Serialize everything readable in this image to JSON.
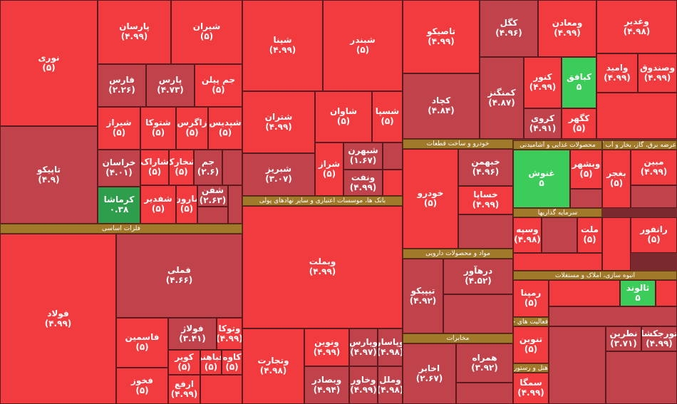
{
  "tiles": [
    {
      "name": "نوری",
      "label": "(۵)",
      "color": "#f23b3e"
    },
    {
      "name": "پارسان",
      "label": "(۴.۹۹)",
      "color": "#f23b3e"
    },
    {
      "name": "شیران",
      "label": "(۵)",
      "color": "#f23b3e"
    },
    {
      "name": "تاپیکو",
      "label": "(۴.۹)",
      "color": "#c0424a"
    },
    {
      "name": "فارس",
      "label": "(۲.۲۶)",
      "color": "#c0424a"
    },
    {
      "name": "پارس",
      "label": "(۴.۷۳)",
      "color": "#c0424a"
    },
    {
      "name": "جم پیلن",
      "label": "(۵)",
      "color": "#f23b3e"
    },
    {
      "name": "شیراز",
      "label": "(۵)",
      "color": "#f23b3e"
    },
    {
      "name": "شتوکا",
      "label": "(۵)",
      "color": "#f23b3e"
    },
    {
      "name": "زاگرس",
      "label": "(۵)",
      "color": "#f23b3e"
    },
    {
      "name": "شپدیس",
      "label": "(۵)",
      "color": "#f23b3e"
    },
    {
      "name": "خراسان",
      "label": "(۴.۰۱)",
      "color": "#c0424a"
    },
    {
      "name": "شاراک",
      "label": "(۵)",
      "color": "#f23b3e"
    },
    {
      "name": "شخارک",
      "label": "(۵)",
      "color": "#f23b3e"
    },
    {
      "name": "جم",
      "label": "(۲.۶)",
      "color": "#c0424a"
    },
    {
      "name": "کرماشا",
      "label": "۰.۳۸",
      "color": "#2f9e4c"
    },
    {
      "name": "شفدیر",
      "label": "(۵)",
      "color": "#f23b3e"
    },
    {
      "name": "مارون",
      "label": "(۵)",
      "color": "#f23b3e"
    },
    {
      "name": "شفن",
      "label": "(۲.۶۳)",
      "color": "#c0424a"
    },
    {
      "name": "فولاد",
      "label": "(۴.۹۹)",
      "color": "#f23b3e"
    },
    {
      "name": "فملی",
      "label": "(۴.۶۶)",
      "color": "#c0424a"
    },
    {
      "name": "فاسمین",
      "label": "(۵)",
      "color": "#f23b3e"
    },
    {
      "name": "فولاژ",
      "label": "(۳.۴۱)",
      "color": "#c0424a"
    },
    {
      "name": "وتوکا",
      "label": "(۴.۹۹)",
      "color": "#f23b3e"
    },
    {
      "name": "فخوز",
      "label": "(۵)",
      "color": "#f23b3e"
    },
    {
      "name": "کویر",
      "label": "(۵)",
      "color": "#f23b3e"
    },
    {
      "name": "فباهنر",
      "label": "(۵)",
      "color": "#f23b3e"
    },
    {
      "name": "کاوه",
      "label": "(۵)",
      "color": "#f23b3e"
    },
    {
      "name": "ارفع",
      "label": "(۴.۹۹)",
      "color": "#f23b3e"
    },
    {
      "name": "شپنا",
      "label": "(۴.۹۹)",
      "color": "#f23b3e"
    },
    {
      "name": "شبندر",
      "label": "(۵)",
      "color": "#f23b3e"
    },
    {
      "name": "شتران",
      "label": "(۴.۹۹)",
      "color": "#f23b3e"
    },
    {
      "name": "شاوان",
      "label": "(۵)",
      "color": "#f23b3e"
    },
    {
      "name": "شسپا",
      "label": "(۵)",
      "color": "#f23b3e"
    },
    {
      "name": "شراز",
      "label": "(۵)",
      "color": "#f23b3e"
    },
    {
      "name": "شبهرن",
      "label": "(۱.۶۷)",
      "color": "#c0424a"
    },
    {
      "name": "شبریز",
      "label": "(۳.۰۷)",
      "color": "#c0424a"
    },
    {
      "name": "ونفت",
      "label": "(۴.۹۹)",
      "color": "#c0424a"
    },
    {
      "name": "وبملت",
      "label": "(۴.۹۹)",
      "color": "#f23b3e"
    },
    {
      "name": "وتجارت",
      "label": "(۴.۹۸)",
      "color": "#f23b3e"
    },
    {
      "name": "ونوین",
      "label": "(۴.۹۹)",
      "color": "#f23b3e"
    },
    {
      "name": "وپارس",
      "label": "(۴.۹۷)",
      "color": "#c0424a"
    },
    {
      "name": "وپاسار",
      "label": "(۴.۹۸)",
      "color": "#c0424a"
    },
    {
      "name": "وبصادر",
      "label": "(۴.۹۴)",
      "color": "#c0424a"
    },
    {
      "name": "وخاور",
      "label": "(۴.۹۹)",
      "color": "#c0424a"
    },
    {
      "name": "وملل",
      "label": "(۴.۹۸)",
      "color": "#c0424a"
    },
    {
      "name": "تاصیکو",
      "label": "(۴.۹۹)",
      "color": "#f23b3e"
    },
    {
      "name": "کگل",
      "label": "(۴.۹۶)",
      "color": "#c0424a"
    },
    {
      "name": "ومعادن",
      "label": "(۴.۹۹)",
      "color": "#f23b3e"
    },
    {
      "name": "وغدیر",
      "label": "(۴.۹۸)",
      "color": "#f23b3e"
    },
    {
      "name": "کچاد",
      "label": "(۴.۸۴)",
      "color": "#c0424a"
    },
    {
      "name": "کمنگنز",
      "label": "(۴.۸۷)",
      "color": "#c0424a"
    },
    {
      "name": "کنور",
      "label": "(۴.۹۹)",
      "color": "#f23b3e"
    },
    {
      "name": "کبافق",
      "label": "۵",
      "color": "#3ccc5a"
    },
    {
      "name": "کروی",
      "label": "(۴.۹۱)",
      "color": "#c0424a"
    },
    {
      "name": "کگهر",
      "label": "(۵)",
      "color": "#f23b3e"
    },
    {
      "name": "وامید",
      "label": "(۴.۹۹)",
      "color": "#f23b3e"
    },
    {
      "name": "وصندوق",
      "label": "(۴.۹۹)",
      "color": "#f23b3e"
    },
    {
      "name": "خودرو",
      "label": "(۵)",
      "color": "#f23b3e"
    },
    {
      "name": "خبهمن",
      "label": "(۴.۹۶)",
      "color": "#c0424a"
    },
    {
      "name": "خساپا",
      "label": "(۴.۹۹)",
      "color": "#f23b3e"
    },
    {
      "name": "تیپیکو",
      "label": "(۴.۹۲)",
      "color": "#c0424a"
    },
    {
      "name": "درهآور",
      "label": "(۴.۵۲)",
      "color": "#c0424a"
    },
    {
      "name": "اخابر",
      "label": "(۲.۶۷)",
      "color": "#c0424a"
    },
    {
      "name": "همراه",
      "label": "(۳.۹۲)",
      "color": "#c0424a"
    },
    {
      "name": "غنوش",
      "label": "۵",
      "color": "#3ccc5a"
    },
    {
      "name": "وبشهر",
      "label": "(۵)",
      "color": "#f23b3e"
    },
    {
      "name": "بغجر",
      "label": "(۵)",
      "color": "#f23b3e"
    },
    {
      "name": "مبین",
      "label": "(۴.۹۹)",
      "color": "#f23b3e"
    },
    {
      "name": "وسپه",
      "label": "(۴.۹۸)",
      "color": "#f23b3e"
    },
    {
      "name": "ملت",
      "label": "(۵)",
      "color": "#f23b3e"
    },
    {
      "name": "رانفور",
      "label": "(۵)",
      "color": "#f23b3e"
    },
    {
      "name": "رمپنا",
      "label": "(۵)",
      "color": "#f23b3e"
    },
    {
      "name": "ثالوند",
      "label": "۵",
      "color": "#3ccc5a"
    },
    {
      "name": "تنوین",
      "label": "(۵)",
      "color": "#f23b3e"
    },
    {
      "name": "نطرین",
      "label": "(۳.۷۱)",
      "color": "#c0424a"
    },
    {
      "name": "تورجکشا",
      "label": "(۴.۹۹)",
      "color": "#c0424a"
    },
    {
      "name": "سمگا",
      "label": "(۴.۹۹)",
      "color": "#f23b3e"
    }
  ],
  "sectors": [
    {
      "name": "فلزات اساسی"
    },
    {
      "name": "بانک ها، موسسات اعتباری و سایر نهادهای پولی"
    },
    {
      "name": "خودرو و ساخت قطعات"
    },
    {
      "name": "محصولات غذایی و آشامیدنی"
    },
    {
      "name": "عرضه برق، گاز، بخار و آب گرم"
    },
    {
      "name": "مواد و محصولات دارویی"
    },
    {
      "name": "مخابرات"
    },
    {
      "name": "سرمایه گذاریها"
    },
    {
      "name": "انبوه سازی، املاک و مستغلات"
    },
    {
      "name": "فعالیت های جنبی"
    },
    {
      "name": "هتل و رستوران"
    }
  ]
}
